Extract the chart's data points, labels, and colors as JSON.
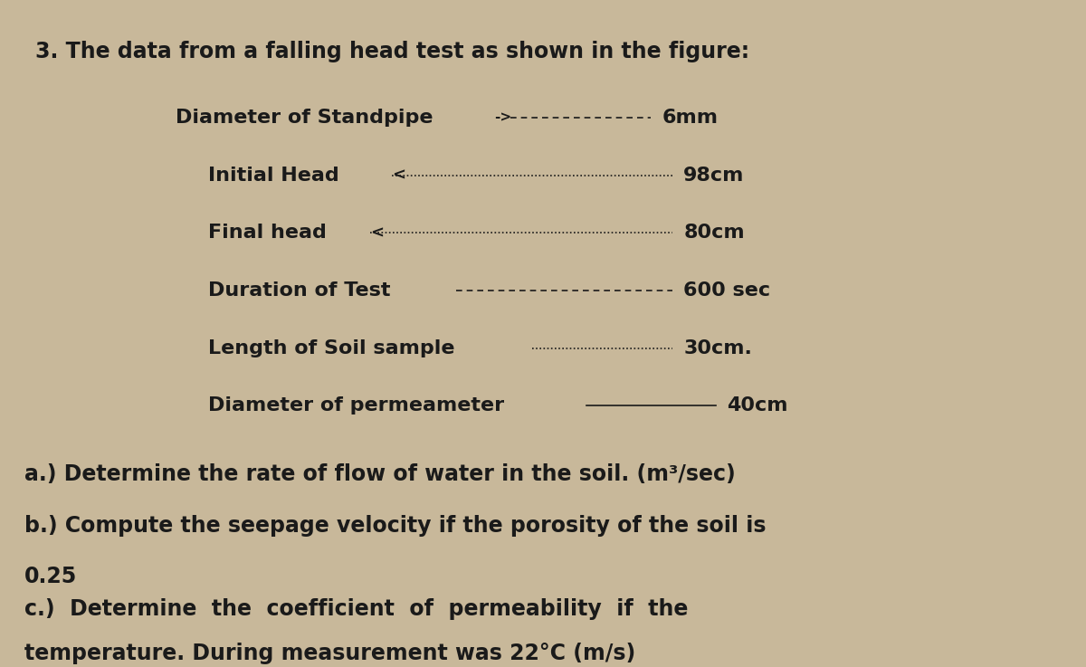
{
  "background_color": "#c8b89a",
  "title_line": "3. The data from a falling head test as shown in the figure:",
  "data_lines": [
    {
      "label": "Diameter of Standpipe",
      "dashes": "-------",
      "value": "6mm",
      "indent": 0.18
    },
    {
      "label": "Initial Head",
      "dashes": ".................",
      "value": "98cm",
      "indent": 0.22
    },
    {
      "label": "Final head",
      "dashes": ".................",
      "value": "80cm",
      "indent": 0.22
    },
    {
      "label": "Duration of Test",
      "dashes": "---------------",
      "value": "600 sec",
      "indent": 0.22
    },
    {
      "label": "Length of Soil sample",
      "dashes": "--------",
      "value": "30cm.",
      "indent": 0.22
    },
    {
      "label": "Diameter of permeameter",
      "dashes": "---",
      "value": "40cm",
      "indent": 0.22
    }
  ],
  "question_a": "a.) Determine the rate of flow of water in the soil. (m³/sec)",
  "question_b": "b.) Compute the seepage velocity if the porosity of the soil is",
  "question_b2": "0.25",
  "question_c": "c.)  Determine  the  coefficient  of  permeability  if  the",
  "question_c2": "temperature. During measurement was 22°C (m/s)",
  "font_size_title": 17,
  "font_size_data": 16,
  "font_size_questions": 17,
  "text_color": "#1a1a1a"
}
